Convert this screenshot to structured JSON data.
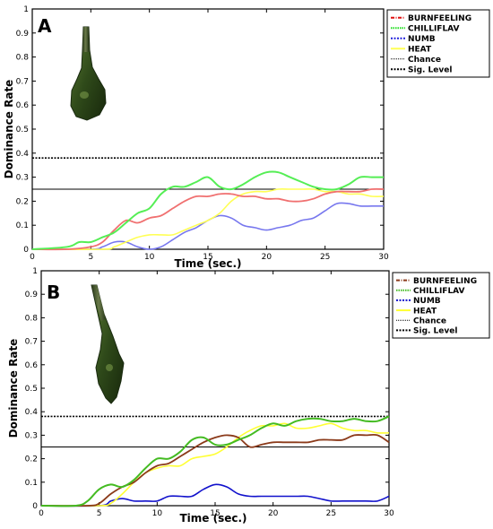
{
  "chart_data": [
    {
      "type": "line",
      "panel_label": "A",
      "xlabel": "Time (sec.)",
      "ylabel": "Dominance Rate",
      "xlim": [
        0,
        30
      ],
      "ylim": [
        0,
        1
      ],
      "xticks": [
        0,
        5,
        10,
        15,
        20,
        25,
        30
      ],
      "yticks": [
        0,
        0.1,
        0.2,
        0.3,
        0.4,
        0.5,
        0.6,
        0.7,
        0.8,
        0.9,
        1
      ],
      "legend_position": "top-right-outside",
      "series": [
        {
          "name": "BURNFEELING",
          "color": "#f07070",
          "x": [
            0,
            3,
            5,
            6,
            7,
            8,
            9,
            10,
            11,
            12,
            13,
            14,
            15,
            16,
            17,
            18,
            19,
            20,
            21,
            22,
            23,
            24,
            25,
            26,
            27,
            28,
            29,
            30
          ],
          "y": [
            0,
            0,
            0.01,
            0.03,
            0.08,
            0.12,
            0.11,
            0.13,
            0.14,
            0.17,
            0.2,
            0.22,
            0.22,
            0.23,
            0.23,
            0.22,
            0.22,
            0.21,
            0.21,
            0.2,
            0.2,
            0.21,
            0.23,
            0.24,
            0.24,
            0.24,
            0.25,
            0.25
          ]
        },
        {
          "name": "CHILLIFLAV",
          "color": "#55ee55",
          "x": [
            0,
            3,
            4,
            5,
            6,
            7,
            8,
            9,
            10,
            11,
            12,
            13,
            14,
            15,
            16,
            17,
            18,
            19,
            20,
            21,
            22,
            23,
            24,
            25,
            26,
            27,
            28,
            29,
            30
          ],
          "y": [
            0,
            0.01,
            0.03,
            0.03,
            0.05,
            0.07,
            0.11,
            0.15,
            0.17,
            0.23,
            0.26,
            0.26,
            0.28,
            0.3,
            0.26,
            0.25,
            0.27,
            0.3,
            0.32,
            0.32,
            0.3,
            0.28,
            0.26,
            0.25,
            0.25,
            0.27,
            0.3,
            0.3,
            0.3
          ]
        },
        {
          "name": "NUMB",
          "color": "#7777ee",
          "x": [
            0,
            5,
            6,
            7,
            8,
            9,
            10,
            11,
            12,
            13,
            14,
            15,
            16,
            17,
            18,
            19,
            20,
            21,
            22,
            23,
            24,
            25,
            26,
            27,
            28,
            29,
            30
          ],
          "y": [
            0,
            0,
            0.01,
            0.03,
            0.03,
            0.01,
            0,
            0.01,
            0.04,
            0.07,
            0.09,
            0.12,
            0.14,
            0.13,
            0.1,
            0.09,
            0.08,
            0.09,
            0.1,
            0.12,
            0.13,
            0.16,
            0.19,
            0.19,
            0.18,
            0.18,
            0.18
          ]
        },
        {
          "name": "HEAT",
          "color": "#ffff55",
          "x": [
            0,
            6,
            7,
            8,
            9,
            10,
            11,
            12,
            13,
            14,
            15,
            16,
            17,
            18,
            19,
            20,
            21,
            22,
            23,
            24,
            25,
            26,
            27,
            28,
            29,
            30
          ],
          "y": [
            0,
            0,
            0.01,
            0.03,
            0.05,
            0.06,
            0.06,
            0.06,
            0.08,
            0.1,
            0.12,
            0.15,
            0.2,
            0.23,
            0.24,
            0.24,
            0.25,
            0.25,
            0.25,
            0.25,
            0.24,
            0.24,
            0.23,
            0.23,
            0.22,
            0.22
          ]
        },
        {
          "name": "Chance",
          "color": "#000000",
          "constant": 0.25
        },
        {
          "name": "Sig. Level",
          "color": "#000000",
          "constant": 0.38
        }
      ]
    },
    {
      "type": "line",
      "panel_label": "B",
      "xlabel": "Time (sec.)",
      "ylabel": "Dominance Rate",
      "xlim": [
        0,
        30
      ],
      "ylim": [
        0,
        1
      ],
      "xticks": [
        0,
        5,
        10,
        15,
        20,
        25,
        30
      ],
      "yticks": [
        0,
        0.1,
        0.2,
        0.3,
        0.4,
        0.5,
        0.6,
        0.7,
        0.8,
        0.9,
        1
      ],
      "legend_position": "top-right-outside",
      "series": [
        {
          "name": "BURNFEELING",
          "color": "#8b3a1a",
          "x": [
            0,
            4,
            5,
            6,
            7,
            8,
            9,
            10,
            11,
            12,
            13,
            14,
            15,
            16,
            17,
            18,
            19,
            20,
            21,
            22,
            23,
            24,
            25,
            26,
            27,
            28,
            29,
            30
          ],
          "y": [
            0,
            0,
            0.01,
            0.05,
            0.08,
            0.1,
            0.14,
            0.17,
            0.18,
            0.21,
            0.24,
            0.27,
            0.29,
            0.3,
            0.29,
            0.25,
            0.26,
            0.27,
            0.27,
            0.27,
            0.27,
            0.28,
            0.28,
            0.28,
            0.3,
            0.3,
            0.3,
            0.27
          ]
        },
        {
          "name": "CHILLIFLAV",
          "color": "#44bb22",
          "x": [
            0,
            3,
            4,
            5,
            6,
            7,
            8,
            9,
            10,
            11,
            12,
            13,
            14,
            15,
            16,
            17,
            18,
            19,
            20,
            21,
            22,
            23,
            24,
            25,
            26,
            27,
            28,
            29,
            30
          ],
          "y": [
            0,
            0,
            0.02,
            0.07,
            0.09,
            0.08,
            0.11,
            0.16,
            0.2,
            0.2,
            0.23,
            0.28,
            0.29,
            0.26,
            0.26,
            0.28,
            0.3,
            0.33,
            0.35,
            0.34,
            0.36,
            0.37,
            0.37,
            0.36,
            0.36,
            0.37,
            0.36,
            0.36,
            0.38
          ]
        },
        {
          "name": "NUMB",
          "color": "#1111cc",
          "x": [
            0,
            5,
            6,
            7,
            8,
            9,
            10,
            11,
            12,
            13,
            14,
            15,
            16,
            17,
            18,
            19,
            20,
            21,
            22,
            23,
            24,
            25,
            26,
            27,
            28,
            29,
            30
          ],
          "y": [
            0,
            0,
            0.02,
            0.03,
            0.02,
            0.02,
            0.02,
            0.04,
            0.04,
            0.04,
            0.07,
            0.09,
            0.08,
            0.05,
            0.04,
            0.04,
            0.04,
            0.04,
            0.04,
            0.04,
            0.03,
            0.02,
            0.02,
            0.02,
            0.02,
            0.02,
            0.04
          ]
        },
        {
          "name": "HEAT",
          "color": "#ffff33",
          "x": [
            0,
            5,
            6,
            7,
            8,
            9,
            10,
            11,
            12,
            13,
            14,
            15,
            16,
            17,
            18,
            19,
            20,
            21,
            22,
            23,
            24,
            25,
            26,
            27,
            28,
            29,
            30
          ],
          "y": [
            0,
            0,
            0.01,
            0.05,
            0.1,
            0.14,
            0.16,
            0.17,
            0.17,
            0.2,
            0.21,
            0.22,
            0.25,
            0.29,
            0.32,
            0.34,
            0.34,
            0.35,
            0.33,
            0.33,
            0.34,
            0.35,
            0.33,
            0.32,
            0.32,
            0.31,
            0.31
          ]
        },
        {
          "name": "Chance",
          "color": "#000000",
          "constant": 0.25
        },
        {
          "name": "Sig. Level",
          "color": "#000000",
          "constant": 0.38
        }
      ]
    }
  ]
}
